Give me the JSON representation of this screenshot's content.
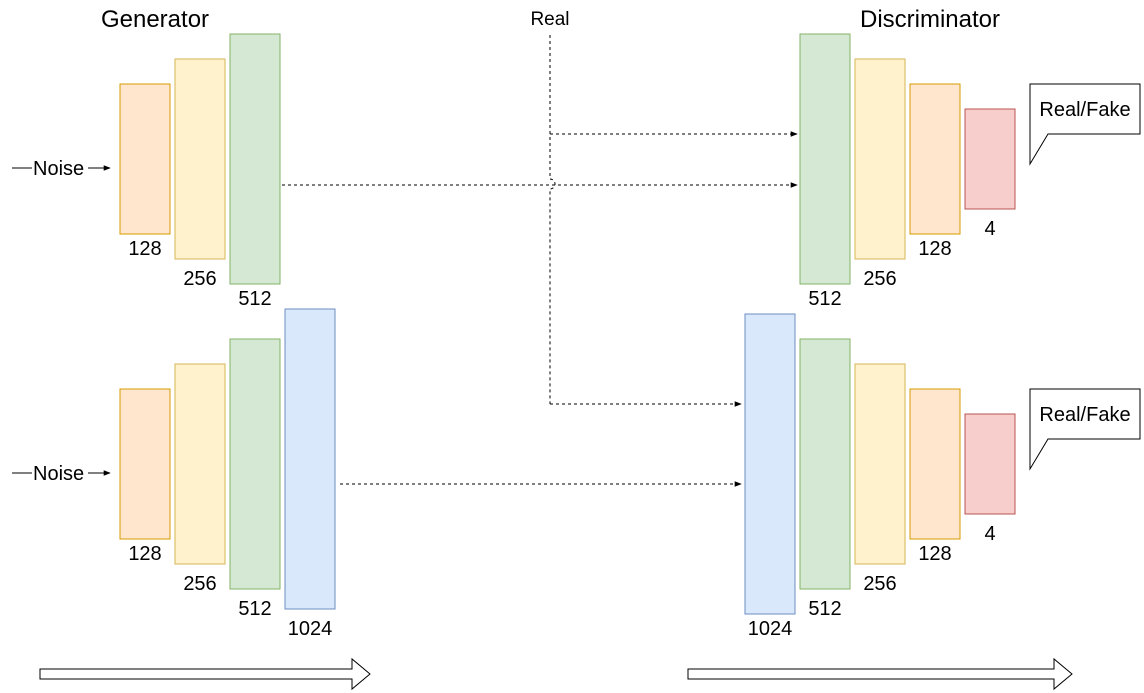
{
  "titles": {
    "generator": "Generator",
    "discriminator": "Discriminator",
    "real": "Real"
  },
  "inputs": {
    "noise_top": "Noise",
    "noise_bottom": "Noise"
  },
  "outputs": {
    "top": "Real/Fake",
    "bottom": "Real/Fake"
  },
  "colors": {
    "128": {
      "fill": "#ffe6cc",
      "stroke": "#d79b00"
    },
    "256": {
      "fill": "#fff2cc",
      "stroke": "#d6b656"
    },
    "512": {
      "fill": "#d5e8d4",
      "stroke": "#82b366"
    },
    "1024": {
      "fill": "#dae8fc",
      "stroke": "#6c8ebf"
    },
    "4": {
      "fill": "#f8cecc",
      "stroke": "#b85450"
    }
  },
  "generator_top": [
    "128",
    "256",
    "512"
  ],
  "generator_bottom": [
    "128",
    "256",
    "512",
    "1024"
  ],
  "discriminator_top": [
    "512",
    "256",
    "128",
    "4"
  ],
  "discriminator_bottom": [
    "1024",
    "512",
    "256",
    "128",
    "4"
  ]
}
